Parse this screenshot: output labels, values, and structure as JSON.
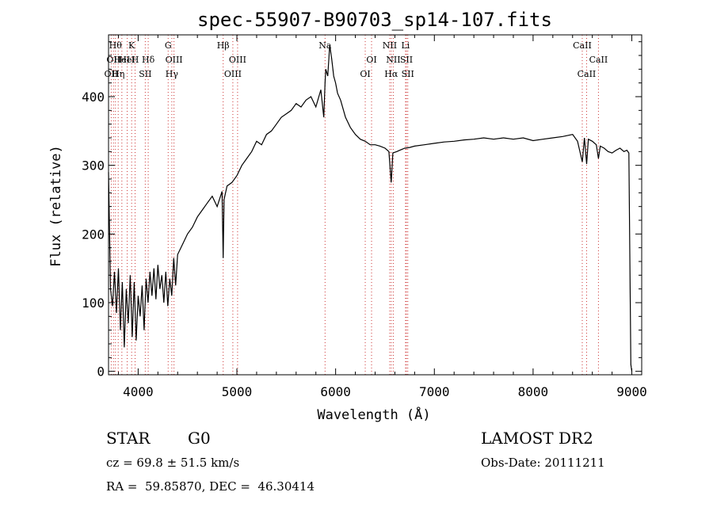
{
  "chart_data": {
    "type": "line",
    "title": "spec-55907-B90703_sp14-107.fits",
    "xlabel": "Wavelength (Å)",
    "ylabel": "Flux (relative)",
    "xlim": [
      3700,
      9100
    ],
    "ylim": [
      -5,
      490
    ],
    "x_ticks": [
      4000,
      5000,
      6000,
      7000,
      8000,
      9000
    ],
    "y_ticks": [
      0,
      100,
      200,
      300,
      400
    ],
    "grid": false,
    "line_color": "#000000",
    "marker_color": "#cc3333",
    "series": [
      {
        "x": [
          3700,
          3720,
          3740,
          3760,
          3780,
          3800,
          3820,
          3840,
          3860,
          3880,
          3900,
          3920,
          3940,
          3960,
          3980,
          4000,
          4020,
          4040,
          4060,
          4080,
          4100,
          4120,
          4140,
          4160,
          4180,
          4200,
          4220,
          4240,
          4260,
          4280,
          4300,
          4320,
          4340,
          4360,
          4380,
          4400,
          4450,
          4500,
          4550,
          4600,
          4650,
          4700,
          4750,
          4800,
          4850,
          4861,
          4870,
          4900,
          4950,
          5000,
          5050,
          5100,
          5150,
          5200,
          5250,
          5300,
          5350,
          5400,
          5450,
          5500,
          5550,
          5600,
          5650,
          5700,
          5750,
          5800,
          5850,
          5880,
          5893,
          5900,
          5920,
          5940,
          5960,
          5980,
          6000,
          6020,
          6050,
          6100,
          6150,
          6200,
          6250,
          6300,
          6350,
          6400,
          6450,
          6500,
          6540,
          6563,
          6580,
          6620,
          6650,
          6700,
          6750,
          6800,
          6900,
          7000,
          7100,
          7200,
          7300,
          7400,
          7500,
          7600,
          7700,
          7800,
          7900,
          8000,
          8100,
          8200,
          8300,
          8400,
          8450,
          8498,
          8520,
          8542,
          8560,
          8600,
          8640,
          8662,
          8680,
          8720,
          8760,
          8800,
          8840,
          8880,
          8920,
          8950,
          8970,
          8990,
          9000
        ],
        "y": [
          290,
          120,
          95,
          145,
          85,
          150,
          60,
          130,
          35,
          120,
          70,
          140,
          50,
          130,
          45,
          110,
          80,
          125,
          60,
          135,
          100,
          145,
          110,
          150,
          105,
          155,
          120,
          140,
          100,
          145,
          95,
          135,
          110,
          165,
          125,
          170,
          185,
          200,
          210,
          225,
          235,
          245,
          255,
          240,
          262,
          165,
          250,
          270,
          275,
          285,
          300,
          310,
          320,
          335,
          330,
          345,
          350,
          360,
          370,
          375,
          380,
          390,
          385,
          395,
          400,
          385,
          410,
          370,
          420,
          440,
          430,
          475,
          455,
          430,
          420,
          405,
          395,
          370,
          355,
          345,
          338,
          335,
          330,
          330,
          328,
          325,
          320,
          275,
          318,
          320,
          322,
          325,
          326,
          328,
          330,
          332,
          334,
          335,
          337,
          338,
          340,
          338,
          340,
          338,
          340,
          336,
          338,
          340,
          342,
          345,
          335,
          305,
          340,
          302,
          338,
          335,
          330,
          310,
          328,
          325,
          320,
          318,
          322,
          325,
          320,
          322,
          318,
          10,
          0
        ]
      }
    ],
    "line_markers": [
      {
        "x": 3727,
        "label": "OII",
        "row": 2
      },
      {
        "x": 3750,
        "label": "OII",
        "row": 1
      },
      {
        "x": 3770,
        "label": "Hθ",
        "row": 0
      },
      {
        "x": 3798,
        "label": "Hη",
        "row": 2
      },
      {
        "x": 3835,
        "label": "HeI",
        "row": 1
      },
      {
        "x": 3889,
        "label": "HeI",
        "row": 1
      },
      {
        "x": 3934,
        "label": "K",
        "row": 0
      },
      {
        "x": 3969,
        "label": "H",
        "row": 1
      },
      {
        "x": 4072,
        "label": "SII",
        "row": 2
      },
      {
        "x": 4102,
        "label": "Hδ",
        "row": 1
      },
      {
        "x": 4304,
        "label": "G",
        "row": 0
      },
      {
        "x": 4341,
        "label": "Hγ",
        "row": 2
      },
      {
        "x": 4363,
        "label": "OIII",
        "row": 1
      },
      {
        "x": 4861,
        "label": "Hβ",
        "row": 0
      },
      {
        "x": 4959,
        "label": "OIII",
        "row": 2
      },
      {
        "x": 5007,
        "label": "OIII",
        "row": 1
      },
      {
        "x": 5893,
        "label": "Na",
        "row": 0
      },
      {
        "x": 6300,
        "label": "OI",
        "row": 2
      },
      {
        "x": 6364,
        "label": "OI",
        "row": 1
      },
      {
        "x": 6548,
        "label": "NII",
        "row": 0
      },
      {
        "x": 6563,
        "label": "Hα",
        "row": 2
      },
      {
        "x": 6584,
        "label": "NII",
        "row": 1
      },
      {
        "x": 6708,
        "label": "Li",
        "row": 0
      },
      {
        "x": 6717,
        "label": "SII",
        "row": 1
      },
      {
        "x": 6731,
        "label": "SII",
        "row": 2
      },
      {
        "x": 8498,
        "label": "CaII",
        "row": 0
      },
      {
        "x": 8542,
        "label": "CaII",
        "row": 2
      },
      {
        "x": 8662,
        "label": "CaII",
        "row": 1
      }
    ]
  },
  "info": {
    "class_label": "STAR",
    "subclass": "G0",
    "survey": "LAMOST DR2",
    "cz_text": "cz = 69.8 ± 51.5 km/s",
    "obs_date_text": "Obs-Date: 20111211",
    "coords_text": "RA =  59.85870, DEC =  46.30414"
  }
}
